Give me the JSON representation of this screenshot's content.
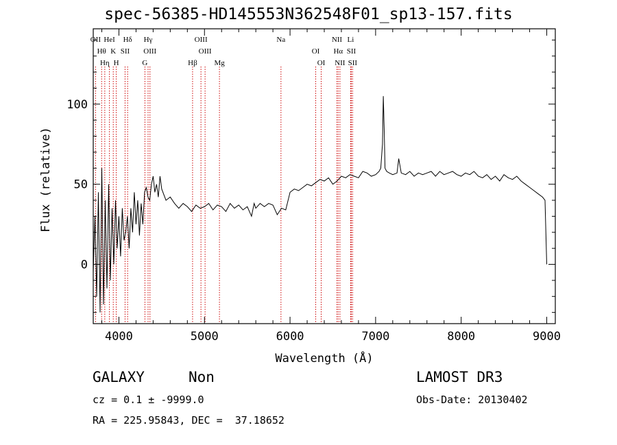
{
  "chart_data": {
    "type": "line",
    "title": "spec-56385-HD145553N362548F01_sp13-157.fits",
    "xlabel": "Wavelength (Å)",
    "ylabel": "Flux (relative)",
    "xlim": [
      3700,
      9100
    ],
    "ylim": [
      -37,
      147
    ],
    "xticks": [
      "4000",
      "5000",
      "6000",
      "7000",
      "8000",
      "9000"
    ],
    "yticks": [
      "0",
      "50",
      "100"
    ],
    "grid": false,
    "legend": "none",
    "series_color": "#000000",
    "line_marker_color": "#cc0000",
    "x": [
      3700,
      3720,
      3740,
      3760,
      3780,
      3800,
      3820,
      3840,
      3860,
      3880,
      3900,
      3920,
      3940,
      3960,
      3980,
      4000,
      4020,
      4040,
      4060,
      4080,
      4100,
      4120,
      4140,
      4160,
      4180,
      4200,
      4220,
      4240,
      4260,
      4280,
      4300,
      4320,
      4340,
      4360,
      4380,
      4400,
      4420,
      4440,
      4460,
      4480,
      4500,
      4550,
      4600,
      4650,
      4700,
      4750,
      4800,
      4850,
      4900,
      4950,
      5000,
      5050,
      5100,
      5150,
      5200,
      5250,
      5300,
      5350,
      5400,
      5450,
      5500,
      5550,
      5580,
      5600,
      5650,
      5700,
      5750,
      5800,
      5850,
      5900,
      5950,
      6000,
      6050,
      6100,
      6150,
      6200,
      6250,
      6300,
      6350,
      6400,
      6450,
      6500,
      6550,
      6600,
      6650,
      6700,
      6750,
      6800,
      6850,
      6900,
      6950,
      7000,
      7040,
      7060,
      7080,
      7090,
      7100,
      7110,
      7130,
      7160,
      7200,
      7250,
      7270,
      7300,
      7350,
      7400,
      7450,
      7500,
      7550,
      7600,
      7650,
      7700,
      7750,
      7800,
      7850,
      7900,
      7950,
      8000,
      8050,
      8100,
      8150,
      8200,
      8250,
      8300,
      8350,
      8400,
      8450,
      8500,
      8550,
      8600,
      8650,
      8700,
      8750,
      8800,
      8850,
      8900,
      8950,
      8980,
      9000
    ],
    "y": [
      -5,
      30,
      -20,
      45,
      -30,
      60,
      -25,
      40,
      -15,
      50,
      -10,
      35,
      0,
      40,
      10,
      30,
      5,
      35,
      15,
      20,
      30,
      10,
      35,
      20,
      45,
      25,
      40,
      18,
      38,
      25,
      45,
      48,
      42,
      40,
      50,
      55,
      45,
      50,
      42,
      55,
      47,
      40,
      42,
      38,
      35,
      38,
      36,
      33,
      37,
      35,
      36,
      38,
      34,
      37,
      36,
      33,
      38,
      35,
      37,
      34,
      36,
      30,
      38,
      35,
      38,
      36,
      38,
      37,
      31,
      35,
      34,
      45,
      47,
      46,
      48,
      50,
      49,
      51,
      53,
      52,
      54,
      50,
      52,
      55,
      54,
      56,
      55,
      54,
      58,
      57,
      55,
      56,
      58,
      60,
      75,
      105,
      85,
      60,
      58,
      57,
      56,
      57,
      66,
      57,
      56,
      58,
      55,
      57,
      56,
      57,
      58,
      55,
      58,
      56,
      57,
      58,
      56,
      55,
      57,
      56,
      58,
      55,
      54,
      56,
      53,
      55,
      52,
      56,
      54,
      53,
      55,
      52,
      50,
      48,
      46,
      44,
      42,
      40,
      0
    ],
    "emission_lines": [
      {
        "label": "OII",
        "wavelength": 3727
      },
      {
        "label": "Hθ",
        "wavelength": 3798
      },
      {
        "label": "Hη",
        "wavelength": 3835
      },
      {
        "label": "HeI",
        "wavelength": 3889
      },
      {
        "label": "K",
        "wavelength": 3934
      },
      {
        "label": "H",
        "wavelength": 3969
      },
      {
        "label": "Hδ",
        "wavelength": 4102
      },
      {
        "label": "SII",
        "wavelength": 4072
      },
      {
        "label": "G",
        "wavelength": 4304
      },
      {
        "label": "Hγ",
        "wavelength": 4341
      },
      {
        "label": "OIII",
        "wavelength": 4363
      },
      {
        "label": "Hβ",
        "wavelength": 4861
      },
      {
        "label": "OIII",
        "wavelength": 4959
      },
      {
        "label": "OIII",
        "wavelength": 5007
      },
      {
        "label": "Mg",
        "wavelength": 5175
      },
      {
        "label": "Na",
        "wavelength": 5894
      },
      {
        "label": "OI",
        "wavelength": 6300
      },
      {
        "label": "OI",
        "wavelength": 6364
      },
      {
        "label": "NII",
        "wavelength": 6548
      },
      {
        "label": "Hα",
        "wavelength": 6563
      },
      {
        "label": "NII",
        "wavelength": 6583
      },
      {
        "label": "Li",
        "wavelength": 6708
      },
      {
        "label": "SII",
        "wavelength": 6716
      },
      {
        "label": "SII",
        "wavelength": 6731
      }
    ]
  },
  "footer": {
    "class_label": "GALAXY",
    "subclass_label": "Non",
    "survey": "LAMOST DR3",
    "redshift": "cz = 0.1 ± -9999.0",
    "obs_date": "Obs-Date: 20130402",
    "coords": "RA = 225.95843, DEC =  37.18652"
  }
}
